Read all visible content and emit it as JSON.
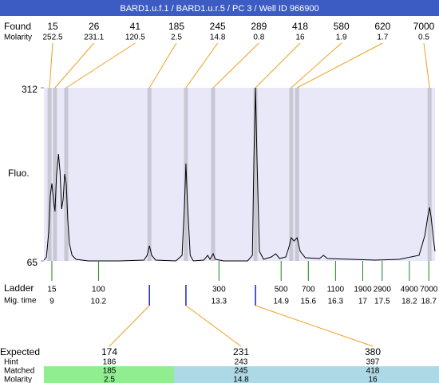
{
  "chart_data": {
    "type": "line",
    "title": "BARD1.u.f.1 / BARD1.u.r.5 / PC 3 / Well ID 966900",
    "ylabel": "Fluo.",
    "ylim": [
      65,
      312
    ],
    "yticks": [
      65,
      312
    ],
    "xlim": [
      8.795,
      18.86
    ],
    "color": "#000000",
    "background": "#e8e8f8",
    "x": [
      8.8,
      8.86,
      8.92,
      8.96,
      9.0,
      9.04,
      9.08,
      9.12,
      9.17,
      9.21,
      9.25,
      9.29,
      9.33,
      9.37,
      9.41,
      9.45,
      9.52,
      9.62,
      9.93,
      10.75,
      11.37,
      11.45,
      11.51,
      11.57,
      11.67,
      12.19,
      12.35,
      12.41,
      12.45,
      12.49,
      12.56,
      12.64,
      12.91,
      13.01,
      13.07,
      13.15,
      13.21,
      13.42,
      14.04,
      14.16,
      14.2,
      14.24,
      14.28,
      14.34,
      14.45,
      14.65,
      14.76,
      14.86,
      15.02,
      15.1,
      15.16,
      15.23,
      15.31,
      15.39,
      15.52,
      15.89,
      15.99,
      16.09,
      16.71,
      17.32,
      17.94,
      18.45,
      18.6,
      18.68,
      18.72,
      18.76,
      18.82,
      18.86
    ],
    "values": [
      66.1,
      70.7,
      107.1,
      158.3,
      175.4,
      152.6,
      135.6,
      186.8,
      217.5,
      192.5,
      139.0,
      152.6,
      189.1,
      175.4,
      124.2,
      90.0,
      73.0,
      67.3,
      65,
      65,
      66.1,
      73.0,
      86.6,
      73.0,
      66.1,
      65,
      73.0,
      141.3,
      203.9,
      147.0,
      73.0,
      65,
      66.1,
      73.0,
      67.3,
      75.2,
      67.3,
      65,
      65,
      73.0,
      209.6,
      312,
      209.6,
      78.7,
      67.3,
      70.7,
      75.2,
      68.4,
      70.7,
      84.3,
      98.0,
      93.5,
      98.0,
      78.7,
      69.6,
      68.4,
      73.0,
      68.4,
      67.3,
      66.1,
      67.3,
      73.0,
      101.4,
      129.9,
      141.3,
      127.6,
      95.7,
      78.7
    ],
    "found": {
      "label": "Found",
      "molarity_label": "Molarity",
      "sizes": [
        15,
        26,
        41,
        185,
        245,
        289,
        418,
        580,
        620,
        7000
      ],
      "molarity": [
        252.5,
        231.1,
        120.5,
        2.5,
        14.8,
        0.8,
        16,
        1.9,
        1.7,
        0.5
      ],
      "x": [
        8.94,
        9.08,
        9.37,
        11.51,
        12.45,
        13.15,
        14.24,
        15.16,
        15.31,
        18.72
      ],
      "band_color": "#c8c8d4",
      "connector_color": "#f0a020"
    },
    "ladder": {
      "label": "Ladder",
      "mig_label": "Mig. time",
      "sizes": [
        15,
        100,
        300,
        500,
        700,
        1100,
        1900,
        2900,
        4900,
        7000
      ],
      "mig_times": [
        9,
        10.2,
        13.3,
        14.9,
        15.6,
        16.3,
        17,
        17.5,
        18.2,
        18.7
      ],
      "color": "#208020"
    },
    "expected": {
      "label": "Expected",
      "hint_label": "Hint",
      "matched_label": "Matched",
      "molarity_label": "Molarity",
      "expected": [
        174,
        231,
        380
      ],
      "hint": [
        186,
        243,
        397
      ],
      "matched": [
        185,
        245,
        418
      ],
      "molarity": [
        2.5,
        14.8,
        16
      ],
      "colors": [
        "#90ee90",
        "#add8e6",
        "#add8e6"
      ],
      "marker_color": "#2020c0"
    }
  }
}
